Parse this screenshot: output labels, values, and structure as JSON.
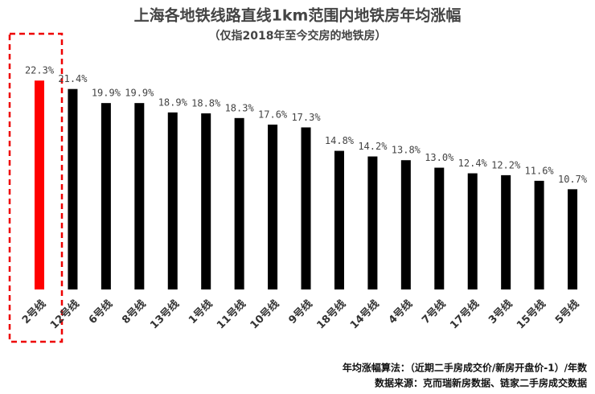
{
  "chart_data": {
    "type": "bar",
    "title": "上海各地铁线路直线1km范围内地铁房年均涨幅",
    "subtitle": "（仅指2018年至今交房的地铁房）",
    "categories": [
      "2号线",
      "12号线",
      "6号线",
      "8号线",
      "13号线",
      "1号线",
      "11号线",
      "10号线",
      "9号线",
      "18号线",
      "14号线",
      "4号线",
      "7号线",
      "17号线",
      "3号线",
      "15号线",
      "5号线"
    ],
    "values": [
      22.3,
      21.4,
      19.9,
      19.9,
      18.9,
      18.8,
      18.3,
      17.6,
      17.3,
      14.8,
      14.2,
      13.8,
      13.0,
      12.4,
      12.2,
      11.6,
      10.7
    ],
    "value_labels": [
      "22.3%",
      "21.4%",
      "19.9%",
      "19.9%",
      "18.9%",
      "18.8%",
      "18.3%",
      "17.6%",
      "17.3%",
      "14.8%",
      "14.2%",
      "13.8%",
      "13.0%",
      "12.4%",
      "12.2%",
      "11.6%",
      "10.7%"
    ],
    "colors": [
      "#ff0000",
      "#000000",
      "#000000",
      "#000000",
      "#000000",
      "#000000",
      "#000000",
      "#000000",
      "#000000",
      "#000000",
      "#000000",
      "#000000",
      "#000000",
      "#000000",
      "#000000",
      "#000000",
      "#000000"
    ],
    "notes": [
      "年均涨幅算法：（近期二手房成交价/新房开盘价-1）/年数",
      "数据来源：克而瑞新房数据、链家二手房成交数据"
    ]
  }
}
